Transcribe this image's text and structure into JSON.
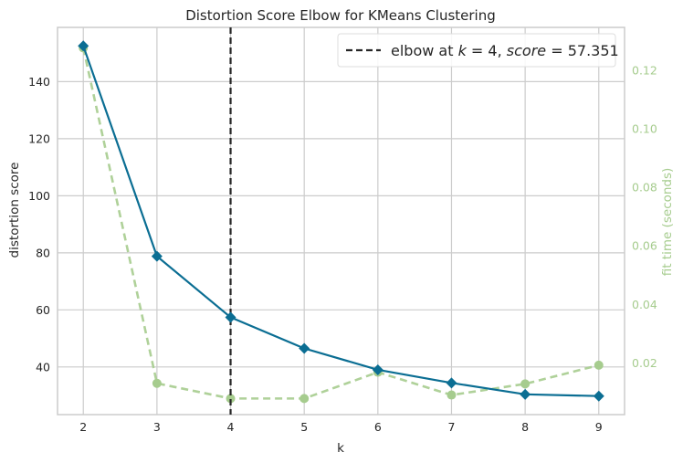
{
  "chart_data": {
    "type": "line",
    "title": "Distortion Score Elbow for KMeans Clustering",
    "xlabel": "k",
    "ylabel": "distortion score",
    "y2label": "fit time (seconds)",
    "x": [
      2,
      3,
      4,
      5,
      6,
      7,
      8,
      9
    ],
    "xticks": [
      "2",
      "3",
      "4",
      "5",
      "6",
      "7",
      "8",
      "9"
    ],
    "xlim": [
      1.65,
      9.35
    ],
    "ylim": [
      23.3,
      159.0
    ],
    "yticks": [
      40,
      60,
      80,
      100,
      120,
      140
    ],
    "y2lim": [
      0.0023,
      0.1347
    ],
    "y2ticks": [
      "0.02",
      "0.04",
      "0.06",
      "0.08",
      "0.10",
      "0.12"
    ],
    "y2tick_values": [
      0.02,
      0.04,
      0.06,
      0.08,
      0.1,
      0.12
    ],
    "series": [
      {
        "axis": "left",
        "color": "#0b6e93",
        "values": [
          152.5,
          78.8,
          57.4,
          46.5,
          39.0,
          34.4,
          30.4,
          29.8
        ]
      },
      {
        "axis": "right",
        "color": "#a6cc8e",
        "values": [
          0.1277,
          0.013,
          0.0078,
          0.0078,
          0.0168,
          0.009,
          0.0128,
          0.0192
        ]
      }
    ],
    "elbow": {
      "k": 4,
      "legend_prefix": "elbow at ",
      "legend_k": "k",
      "legend_mid": " = 4, ",
      "legend_score": "score",
      "legend_suffix": " = 57.351"
    },
    "grid": true,
    "legend_position": "top-right"
  }
}
